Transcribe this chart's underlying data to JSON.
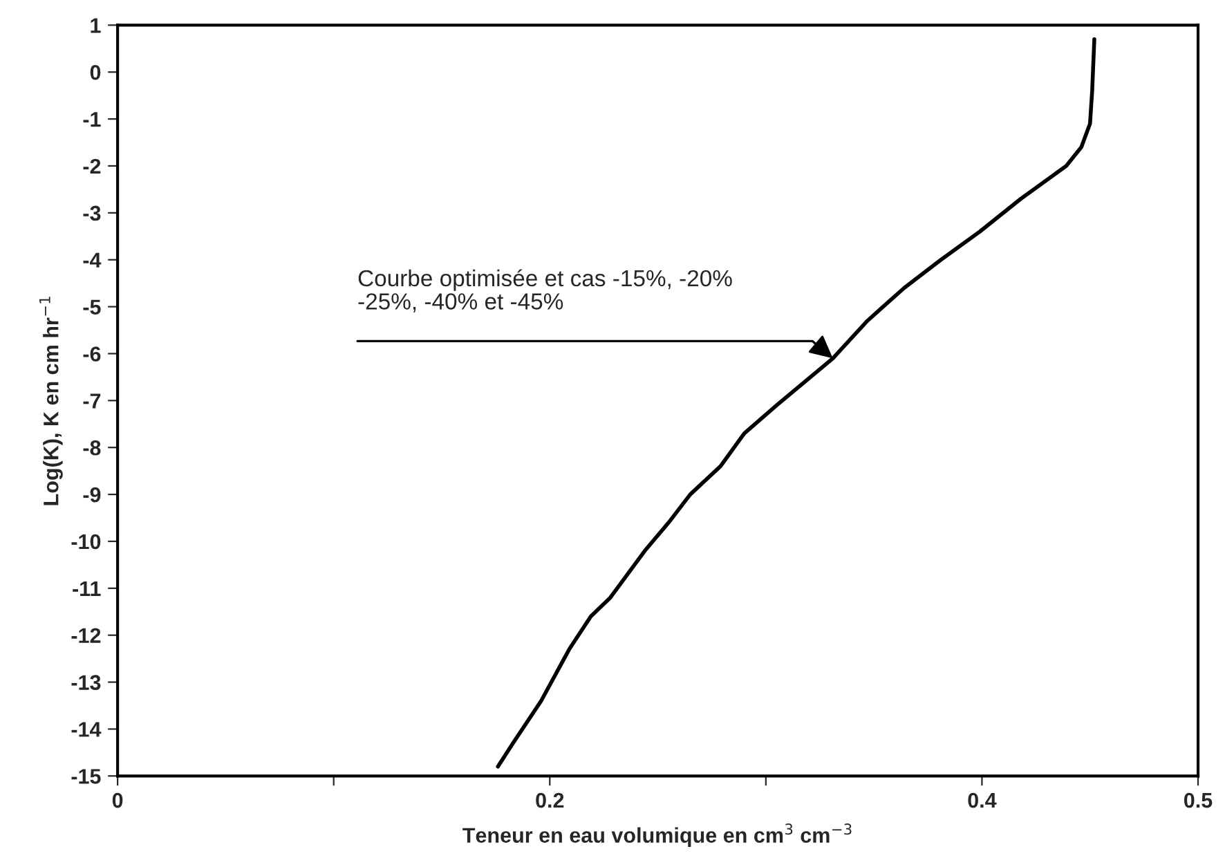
{
  "chart_data": {
    "type": "line",
    "xlabel": "Teneur en eau volumique en cm$^{3}$ cm$^{−3}$",
    "ylabel": "Log(K), K en cm hr$^{−1}$",
    "xlim": [
      0,
      0.5
    ],
    "xticks": [
      0,
      {
        "value": 0.1,
        "label": null
      },
      0.2,
      {
        "value": 0.3,
        "label": null
      },
      0.4,
      0.5
    ],
    "ylim": [
      -15,
      1
    ],
    "yticks": [
      1,
      0,
      -1,
      -2,
      -3,
      -4,
      -5,
      -6,
      -7,
      -8,
      -9,
      -10,
      -11,
      -12,
      -13,
      -14,
      -15
    ],
    "grid": false,
    "legend": false,
    "marker": "none",
    "line_style": "solid",
    "series": [
      {
        "color": "#000000",
        "x": [
          0.176,
          0.183,
          0.196,
          0.209,
          0.219,
          0.228,
          0.244,
          0.255,
          0.265,
          0.279,
          0.29,
          0.305,
          0.331,
          0.347,
          0.364,
          0.381,
          0.399,
          0.418,
          0.439,
          0.446,
          0.45,
          0.451,
          0.452
        ],
        "values": [
          -14.8,
          -14.3,
          -13.4,
          -12.3,
          -11.6,
          -11.2,
          -10.2,
          -9.6,
          -9.0,
          -8.4,
          -7.7,
          -7.1,
          -6.1,
          -5.3,
          -4.6,
          -4.0,
          -3.4,
          -2.7,
          -2.0,
          -1.6,
          -1.1,
          -0.4,
          0.7
        ]
      }
    ],
    "annotations": [
      {
        "text": "Courbe optimisée et cas -15%, -20%\n-25%, -40% et -45%",
        "x": 0.331,
        "y": -6.1
      }
    ]
  }
}
